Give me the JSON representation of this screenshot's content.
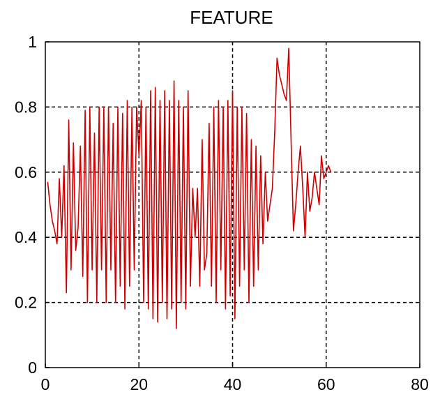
{
  "chart_data": {
    "type": "line",
    "title": "FEATURE",
    "xlabel": "",
    "ylabel": "",
    "xlim": [
      0,
      80
    ],
    "ylim": [
      0,
      1
    ],
    "xticks": [
      0,
      20,
      40,
      60,
      80
    ],
    "yticks": [
      0,
      0.2,
      0.4,
      0.6,
      0.8,
      1
    ],
    "xtick_labels": [
      "0",
      "20",
      "40",
      "60",
      "80"
    ],
    "ytick_labels": [
      "0",
      "0.2",
      "0.4",
      "0.6",
      "0.8",
      "1"
    ],
    "grid": true,
    "grid_style": "dashed",
    "line_color": "#cc0000",
    "series": [
      {
        "x": [
          0.5,
          1,
          1.5,
          2,
          2.5,
          3,
          3.5,
          4,
          4.5,
          5,
          5.5,
          6,
          6.5,
          7,
          7.5,
          8,
          8.5,
          9,
          9.5,
          10,
          10.5,
          11,
          11.5,
          12,
          12.5,
          13,
          13.5,
          14,
          14.5,
          15,
          15.5,
          16,
          16.5,
          17,
          17.5,
          18,
          18.5,
          19,
          19.5,
          20,
          20.5,
          21,
          21.5,
          22,
          22.5,
          23,
          23.5,
          24,
          24.5,
          25,
          25.5,
          26,
          26.5,
          27,
          27.5,
          28,
          28.5,
          29,
          29.5,
          30,
          30.5,
          31,
          31.5,
          32,
          32.5,
          33,
          33.5,
          34,
          34.5,
          35,
          35.5,
          36,
          36.5,
          37,
          37.5,
          38,
          38.5,
          39,
          39.5,
          40,
          40.5,
          41,
          41.5,
          42,
          42.5,
          43,
          43.5,
          44,
          44.5,
          45,
          45.5,
          46,
          46.5,
          47,
          47.5,
          48,
          48.5,
          49,
          49.5,
          50,
          50.5,
          51,
          51.5,
          52,
          52.5,
          53,
          53.5,
          54,
          54.5,
          55,
          55.5,
          56,
          56.5,
          57,
          57.5,
          58,
          58.5,
          59,
          59.5,
          60,
          60.5,
          61
        ],
        "y": [
          0.57,
          0.5,
          0.45,
          0.42,
          0.38,
          0.58,
          0.4,
          0.62,
          0.23,
          0.76,
          0.3,
          0.69,
          0.36,
          0.43,
          0.68,
          0.28,
          0.79,
          0.2,
          0.8,
          0.3,
          0.72,
          0.2,
          0.8,
          0.3,
          0.8,
          0.2,
          0.8,
          0.3,
          0.75,
          0.2,
          0.8,
          0.25,
          0.78,
          0.18,
          0.82,
          0.25,
          0.8,
          0.3,
          0.8,
          0.65,
          0.82,
          0.2,
          0.8,
          0.18,
          0.85,
          0.15,
          0.86,
          0.14,
          0.82,
          0.2,
          0.85,
          0.15,
          0.82,
          0.18,
          0.88,
          0.12,
          0.82,
          0.2,
          0.8,
          0.18,
          0.85,
          0.25,
          0.55,
          0.4,
          0.55,
          0.25,
          0.7,
          0.3,
          0.35,
          0.75,
          0.25,
          0.8,
          0.2,
          0.82,
          0.3,
          0.8,
          0.18,
          0.82,
          0.22,
          0.85,
          0.15,
          0.8,
          0.25,
          0.8,
          0.3,
          0.78,
          0.2,
          0.7,
          0.25,
          0.68,
          0.3,
          0.65,
          0.38,
          0.6,
          0.45,
          0.5,
          0.55,
          0.72,
          0.95,
          0.9,
          0.87,
          0.84,
          0.82,
          0.98,
          0.7,
          0.42,
          0.5,
          0.6,
          0.68,
          0.55,
          0.4,
          0.6,
          0.48,
          0.52,
          0.6,
          0.55,
          0.5,
          0.65,
          0.58,
          0.6,
          0.62,
          0.6
        ]
      }
    ]
  }
}
